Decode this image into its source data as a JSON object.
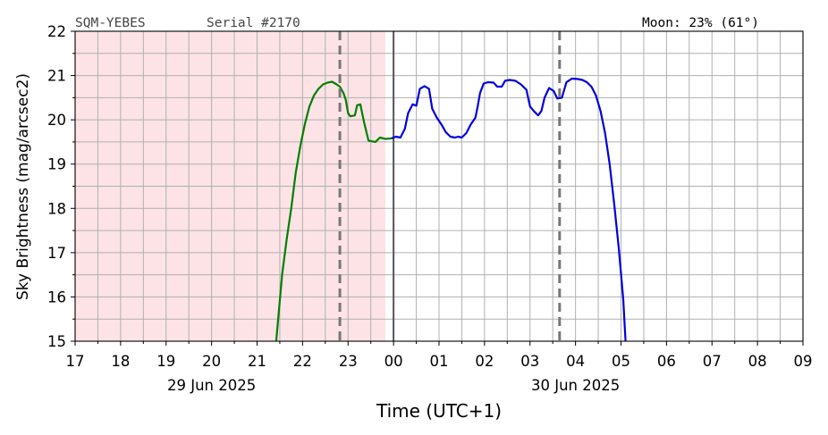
{
  "header": {
    "station": "SQM-YEBES",
    "serial": "Serial #2170",
    "moon": "Moon: 23% (61°)"
  },
  "chart_data": {
    "type": "line",
    "xlabel": "Time (UTC+1)",
    "ylabel": "Sky Brightness (mag/arcsec2)",
    "xlim": [
      17,
      33
    ],
    "ylim": [
      15,
      22
    ],
    "x_ticks": [
      17,
      18,
      19,
      20,
      21,
      22,
      23,
      24,
      25,
      26,
      27,
      28,
      29,
      30,
      31,
      32,
      33
    ],
    "x_tick_labels": [
      "17",
      "18",
      "19",
      "20",
      "21",
      "22",
      "23",
      "00",
      "01",
      "02",
      "03",
      "04",
      "05",
      "06",
      "07",
      "08",
      "09"
    ],
    "y_ticks": [
      15,
      16,
      17,
      18,
      19,
      20,
      21,
      22
    ],
    "y_tick_labels": [
      "15",
      "16",
      "17",
      "18",
      "19",
      "20",
      "21",
      "22"
    ],
    "date_labels": [
      {
        "x": 20,
        "text": "29 Jun 2025"
      },
      {
        "x": 28,
        "text": "30 Jun 2025"
      }
    ],
    "grid": true,
    "shaded_region": {
      "x": [
        17,
        23.82
      ],
      "color": "#fde3e6"
    },
    "midnight_line": 24,
    "dashed_lines": [
      22.82,
      27.65
    ],
    "series": [
      {
        "color": "#008000",
        "points": [
          [
            21.42,
            15.0
          ],
          [
            21.55,
            16.5
          ],
          [
            21.65,
            17.3
          ],
          [
            21.75,
            18.0
          ],
          [
            21.85,
            18.8
          ],
          [
            21.95,
            19.4
          ],
          [
            22.05,
            19.9
          ],
          [
            22.15,
            20.3
          ],
          [
            22.25,
            20.55
          ],
          [
            22.35,
            20.7
          ],
          [
            22.45,
            20.8
          ],
          [
            22.55,
            20.84
          ],
          [
            22.65,
            20.86
          ],
          [
            22.75,
            20.8
          ],
          [
            22.82,
            20.75
          ],
          [
            22.9,
            20.6
          ],
          [
            22.95,
            20.45
          ],
          [
            23.0,
            20.15
          ],
          [
            23.05,
            20.08
          ],
          [
            23.15,
            20.1
          ],
          [
            23.2,
            20.33
          ],
          [
            23.27,
            20.35
          ],
          [
            23.35,
            19.95
          ],
          [
            23.45,
            19.53
          ],
          [
            23.6,
            19.5
          ],
          [
            23.7,
            19.6
          ],
          [
            23.82,
            19.57
          ],
          [
            23.95,
            19.58
          ]
        ]
      },
      {
        "color": "#0000dd",
        "points": [
          [
            23.95,
            19.58
          ],
          [
            24.05,
            19.62
          ],
          [
            24.15,
            19.6
          ],
          [
            24.25,
            19.8
          ],
          [
            24.32,
            20.15
          ],
          [
            24.42,
            20.35
          ],
          [
            24.5,
            20.32
          ],
          [
            24.58,
            20.7
          ],
          [
            24.68,
            20.76
          ],
          [
            24.78,
            20.7
          ],
          [
            24.85,
            20.25
          ],
          [
            24.95,
            20.05
          ],
          [
            25.05,
            19.9
          ],
          [
            25.15,
            19.72
          ],
          [
            25.25,
            19.62
          ],
          [
            25.35,
            19.6
          ],
          [
            25.42,
            19.62
          ],
          [
            25.5,
            19.6
          ],
          [
            25.6,
            19.7
          ],
          [
            25.7,
            19.9
          ],
          [
            25.8,
            20.05
          ],
          [
            25.85,
            20.3
          ],
          [
            25.9,
            20.6
          ],
          [
            25.98,
            20.82
          ],
          [
            26.08,
            20.85
          ],
          [
            26.2,
            20.84
          ],
          [
            26.28,
            20.75
          ],
          [
            26.38,
            20.75
          ],
          [
            26.45,
            20.88
          ],
          [
            26.55,
            20.9
          ],
          [
            26.68,
            20.88
          ],
          [
            26.8,
            20.8
          ],
          [
            26.92,
            20.68
          ],
          [
            27.0,
            20.3
          ],
          [
            27.1,
            20.18
          ],
          [
            27.18,
            20.1
          ],
          [
            27.25,
            20.2
          ],
          [
            27.32,
            20.5
          ],
          [
            27.42,
            20.72
          ],
          [
            27.52,
            20.65
          ],
          [
            27.6,
            20.48
          ],
          [
            27.7,
            20.5
          ],
          [
            27.8,
            20.85
          ],
          [
            27.92,
            20.93
          ],
          [
            28.05,
            20.92
          ],
          [
            28.15,
            20.9
          ],
          [
            28.25,
            20.85
          ],
          [
            28.35,
            20.75
          ],
          [
            28.45,
            20.55
          ],
          [
            28.55,
            20.2
          ],
          [
            28.65,
            19.7
          ],
          [
            28.75,
            19.0
          ],
          [
            28.85,
            18.1
          ],
          [
            28.95,
            17.1
          ],
          [
            29.05,
            15.95
          ],
          [
            29.1,
            15.0
          ]
        ]
      }
    ]
  }
}
